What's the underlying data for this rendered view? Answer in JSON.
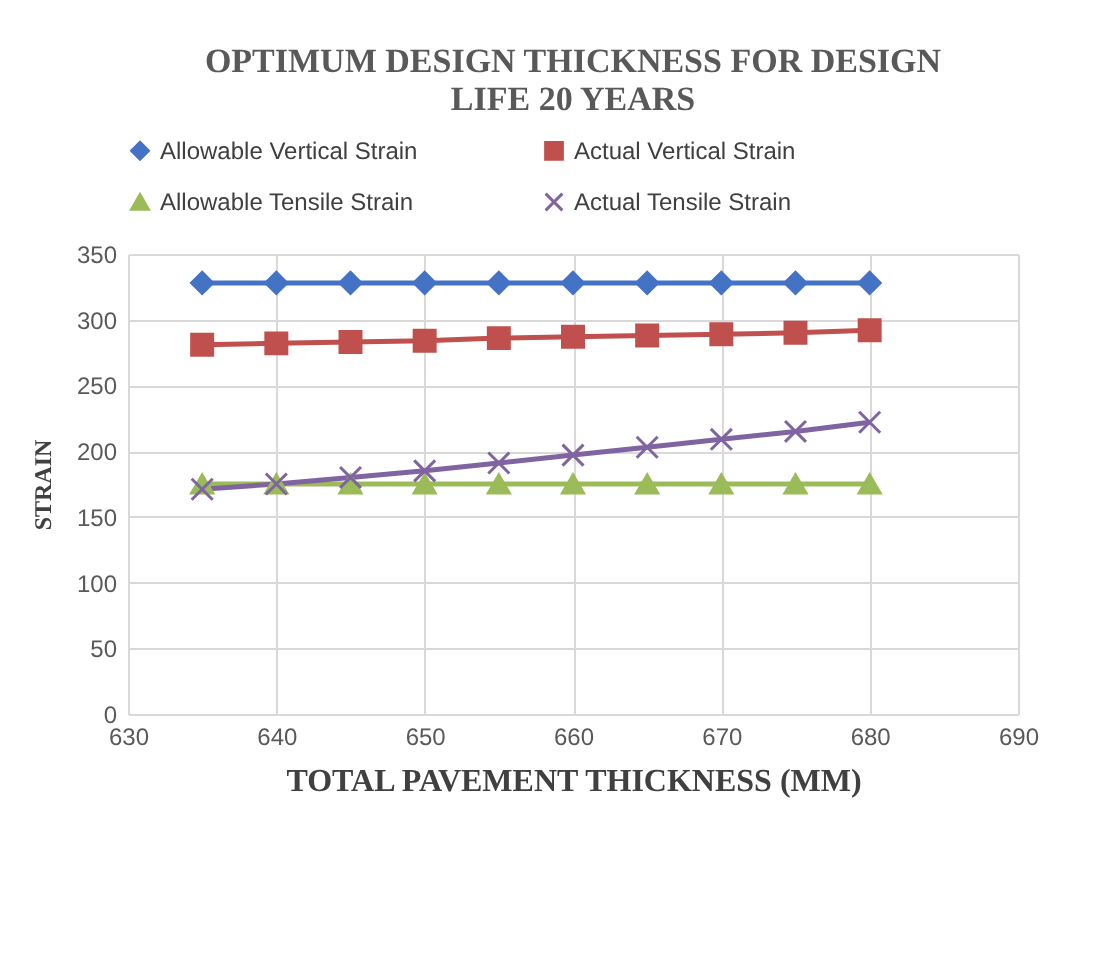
{
  "chart_data": {
    "type": "line",
    "title": [
      "OPTIMUM DESIGN THICKNESS FOR DESIGN",
      "LIFE 20 YEARS"
    ],
    "xlabel": "TOTAL PAVEMENT THICKNESS (MM)",
    "ylabel": "STRAIN",
    "x": [
      635,
      640,
      645,
      650,
      655,
      660,
      665,
      670,
      675,
      680
    ],
    "series": [
      {
        "name": "Allowable Vertical Strain",
        "color": "#4472c4",
        "marker": "diamond",
        "values": [
          328,
          328,
          328,
          328,
          328,
          328,
          328,
          328,
          328,
          328
        ]
      },
      {
        "name": "Actual Vertical Strain",
        "color": "#c0504d",
        "marker": "square",
        "values": [
          281,
          282,
          283,
          284,
          286,
          287,
          288,
          289,
          290,
          292
        ]
      },
      {
        "name": "Allowable Tensile Strain",
        "color": "#9bbb59",
        "marker": "triangle",
        "values": [
          175,
          175,
          175,
          175,
          175,
          175,
          175,
          175,
          175,
          175
        ]
      },
      {
        "name": "Actual Tensile Strain",
        "color": "#8064a2",
        "marker": "cross",
        "values": [
          171,
          175,
          180,
          185,
          191,
          197,
          203,
          209,
          215,
          222
        ]
      }
    ],
    "xlim": [
      630,
      690
    ],
    "xticks": [
      630,
      640,
      650,
      660,
      670,
      680,
      690
    ],
    "ylim": [
      0,
      350
    ],
    "yticks": [
      0,
      50,
      100,
      150,
      200,
      250,
      300,
      350
    ],
    "grid": true,
    "legend": "top",
    "line_style": "solid"
  }
}
